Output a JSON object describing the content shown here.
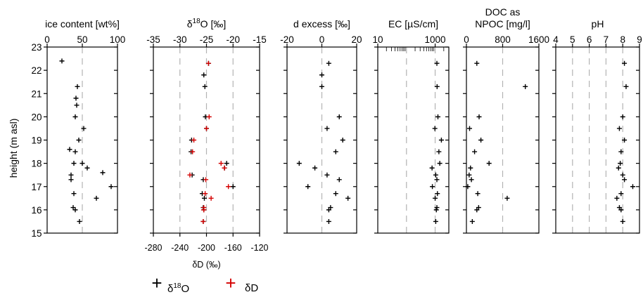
{
  "chart_data": [
    {
      "type": "scatter",
      "title": "ice content [wt%]",
      "xlim": [
        0,
        100
      ],
      "xticks": [
        "0",
        "50",
        "100"
      ],
      "series": [
        {
          "color": "#000000",
          "y": [
            22.4,
            21.3,
            20.8,
            20.5,
            20.0,
            19.5,
            19.0,
            18.6,
            18.5,
            18.0,
            18.0,
            17.8,
            17.6,
            17.5,
            17.3,
            17.0,
            16.7,
            16.5,
            16.1,
            16.0,
            15.5
          ],
          "x": [
            21,
            43,
            41,
            42,
            40,
            52,
            45,
            32,
            40,
            38,
            50,
            57,
            79,
            34,
            34,
            91,
            38,
            70,
            37,
            40,
            46
          ]
        }
      ]
    },
    {
      "type": "scatter",
      "title": "δ18O [‰]",
      "xlim": [
        -35,
        -15
      ],
      "xticks": [
        "-35",
        "-30",
        "-25",
        "-20",
        "-15"
      ],
      "x2label": "δD (‰)",
      "x2lim": [
        -280,
        -120
      ],
      "x2ticks": [
        "-280",
        "-240",
        "-200",
        "-160",
        "-120"
      ],
      "series": [
        {
          "color": "#000000",
          "y": [
            22.3,
            21.8,
            21.3,
            20.0,
            19.5,
            19.0,
            18.5,
            18.0,
            17.8,
            17.5,
            17.3,
            17.0,
            16.7,
            16.5,
            16.1,
            16.0,
            15.5
          ],
          "x": [
            -24.6,
            -25.5,
            -25.3,
            -25.2,
            -25.0,
            -27.8,
            -27.9,
            -21.2,
            -21.6,
            -27.7,
            -25.6,
            -20.0,
            -25.8,
            -25.4,
            -25.6,
            -25.5,
            -25.6
          ]
        },
        {
          "color": "#d40000",
          "y": [
            22.3,
            20.0,
            19.5,
            19.0,
            18.5,
            18.0,
            17.8,
            17.5,
            17.3,
            17.0,
            16.7,
            16.5,
            16.1,
            16.0,
            15.5
          ],
          "x": [
            -197,
            -196,
            -200,
            -219,
            -221,
            -178,
            -173,
            -225,
            -201,
            -167,
            -202,
            -193,
            -204,
            -204,
            -205
          ]
        }
      ]
    },
    {
      "type": "scatter",
      "title": "d excess [‰]",
      "xlim": [
        -20,
        20
      ],
      "xticks": [
        "-20",
        "0",
        "20"
      ],
      "series": [
        {
          "color": "#000000",
          "y": [
            22.3,
            21.8,
            21.3,
            20.0,
            19.5,
            19.0,
            18.5,
            18.0,
            17.8,
            17.5,
            17.3,
            17.0,
            16.7,
            16.5,
            16.1,
            16.0,
            15.5
          ],
          "x": [
            4,
            0,
            0,
            10,
            3,
            12,
            8,
            -13,
            -4,
            3,
            10,
            -8,
            8,
            15,
            5,
            4,
            4
          ]
        }
      ]
    },
    {
      "type": "scatter",
      "title": "EC [µS/cm]",
      "xlim": [
        10,
        3000
      ],
      "xscale": "log",
      "xticks": [
        "10",
        "1000"
      ],
      "series": [
        {
          "color": "#000000",
          "y": [
            22.3,
            21.3,
            20.0,
            19.5,
            19.0,
            18.5,
            18.0,
            17.8,
            17.5,
            17.3,
            17.0,
            16.7,
            16.5,
            16.1,
            16.0,
            15.5
          ],
          "x": [
            1150,
            1170,
            1250,
            980,
            1650,
            1350,
            1450,
            780,
            1050,
            1150,
            800,
            1200,
            1000,
            1150,
            1100,
            1050
          ]
        }
      ]
    },
    {
      "type": "scatter",
      "title": "DOC as\nNPOC [mg/l]",
      "xlim": [
        0,
        1600
      ],
      "xticks": [
        "0",
        "800",
        "1600"
      ],
      "series": [
        {
          "color": "#000000",
          "y": [
            22.3,
            21.3,
            20.0,
            19.5,
            19.0,
            18.5,
            18.0,
            17.8,
            17.5,
            17.3,
            17.0,
            16.7,
            16.5,
            16.1,
            16.0,
            15.5
          ],
          "x": [
            230,
            1300,
            280,
            70,
            320,
            180,
            500,
            90,
            60,
            110,
            30,
            250,
            900,
            270,
            230,
            130
          ]
        }
      ]
    },
    {
      "type": "scatter",
      "title": "pH",
      "xlim": [
        4,
        9
      ],
      "xticks": [
        "4",
        "5",
        "6",
        "7",
        "8",
        "9"
      ],
      "series": [
        {
          "color": "#000000",
          "y": [
            22.3,
            21.3,
            20.0,
            19.5,
            19.0,
            18.5,
            18.0,
            17.8,
            17.5,
            17.3,
            17.0,
            16.7,
            16.5,
            16.1,
            16.0,
            15.5
          ],
          "x": [
            8.1,
            8.2,
            8.0,
            7.8,
            8.1,
            7.9,
            7.85,
            7.75,
            8.0,
            8.1,
            8.6,
            7.9,
            7.65,
            7.8,
            7.9,
            8.0
          ]
        }
      ]
    }
  ],
  "shared_y": {
    "label": "height (m asl)",
    "ylim": [
      15,
      23
    ],
    "yticks": [
      "15",
      "16",
      "17",
      "18",
      "19",
      "20",
      "21",
      "22",
      "23"
    ]
  },
  "legend": [
    {
      "symbol": "+",
      "label_base": "δ",
      "label_sup": "18",
      "label_tail": "O",
      "color": "#000000"
    },
    {
      "symbol": "+",
      "label_base": "δD",
      "color": "#d40000"
    }
  ]
}
